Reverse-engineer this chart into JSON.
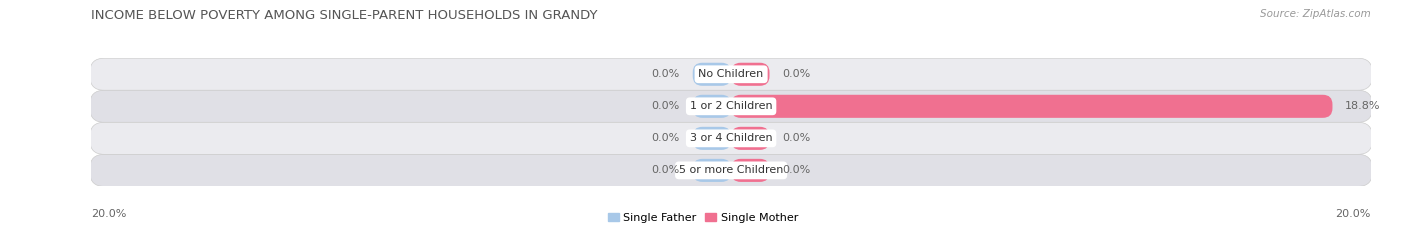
{
  "title": "INCOME BELOW POVERTY AMONG SINGLE-PARENT HOUSEHOLDS IN GRANDY",
  "source": "Source: ZipAtlas.com",
  "categories": [
    "No Children",
    "1 or 2 Children",
    "3 or 4 Children",
    "5 or more Children"
  ],
  "single_father": [
    0.0,
    0.0,
    0.0,
    0.0
  ],
  "single_mother": [
    0.0,
    18.8,
    0.0,
    0.0
  ],
  "father_color": "#a8c8e8",
  "mother_color": "#f07090",
  "row_fill_color": "#e8e8ec",
  "row_alt_color": "#dcdce4",
  "label_color": "#666666",
  "category_text_color": "#333333",
  "title_color": "#555555",
  "source_color": "#999999",
  "xlim": 20.0,
  "title_fontsize": 9.5,
  "source_fontsize": 7.5,
  "label_fontsize": 8,
  "category_fontsize": 8,
  "legend_fontsize": 8,
  "background_color": "#ffffff",
  "min_bar_width": 1.5
}
